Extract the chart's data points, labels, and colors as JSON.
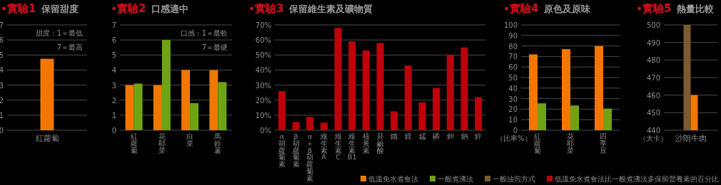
{
  "chart_data": [
    {
      "type": "bar",
      "title": "實驗1",
      "subtitle": "保留甜度",
      "categories": [
        "紅蘿蔔"
      ],
      "series": [
        {
          "name": "低溫免水煮食法",
          "color": "#f07800",
          "values": [
            4.75
          ]
        }
      ],
      "ylim": [
        0,
        7
      ],
      "yticks": [
        0,
        1,
        2,
        3,
        4,
        5,
        6,
        7
      ],
      "grid": "y",
      "legend": "bottom",
      "annotations": [
        "甜度：1＝最低",
        "7＝最高"
      ]
    },
    {
      "type": "bar",
      "title": "實驗2",
      "subtitle": "口感適中",
      "categories": [
        "紅蘿蔔",
        "花耶菜",
        "白菜",
        "馬鈴薯"
      ],
      "series": [
        {
          "color": "#f07800",
          "values": [
            3,
            3,
            4,
            4
          ]
        },
        {
          "name": "一般煮沸法",
          "color": "#6fa314",
          "values": [
            3.1,
            6,
            1.8,
            3.2
          ]
        }
      ],
      "ylim": [
        0,
        7
      ],
      "yticks": [
        0,
        1,
        2,
        3,
        4,
        5,
        6,
        7
      ],
      "grid": "y",
      "legend": "bottom",
      "annotations": [
        "口感：1＝最軟",
        "7＝最硬"
      ]
    },
    {
      "type": "bar",
      "title": "實驗3",
      "subtitle": "保留維生素及礦物質",
      "categories": [
        "α胡蘿蔔素",
        "β胡蘿蔔素",
        "α＋β胡蘿蔔素",
        "維生素A",
        "維生素C",
        "維生素B1",
        "核黃素",
        "菸鹼酸",
        "鐵",
        "鎂",
        "錳",
        "磷",
        "鉀",
        "鈉",
        "鋅"
      ],
      "series": [
        {
          "name": "低溫免水煮食法比一般煮沸法多保留營養素的百分比",
          "color": "#c0000a",
          "values": [
            26,
            5.5,
            8.8,
            5,
            68,
            59,
            53,
            58,
            12.5,
            43,
            18.5,
            28,
            50,
            55,
            22
          ]
        }
      ],
      "ylim": [
        0,
        70
      ],
      "yticks": [
        {
          "value": 0,
          "label": "0%"
        },
        {
          "value": 10,
          "label": "10%"
        },
        {
          "value": 20,
          "label": "20%"
        },
        {
          "value": 30,
          "label": "30%"
        },
        {
          "value": 40,
          "label": "40%"
        },
        {
          "value": 50,
          "label": "50%"
        },
        {
          "value": 60,
          "label": "60%"
        },
        {
          "value": 70,
          "label": "70%"
        }
      ],
      "grid": "y",
      "legend": "bottom"
    },
    {
      "type": "bar",
      "title": "實驗4",
      "subtitle": "原色及原味",
      "ylabel": "（比率%）",
      "categories": [
        "紅蘿蔔",
        "花耶菜",
        "四季豆"
      ],
      "series": [
        {
          "color": "#f07800",
          "values": [
            72,
            77,
            80
          ]
        },
        {
          "color": "#6fa314",
          "values": [
            25.5,
            23.5,
            20.5
          ]
        }
      ],
      "ylim": [
        0,
        100
      ],
      "yticks": [
        0,
        10,
        20,
        30,
        40,
        50,
        60,
        70,
        80,
        90,
        100
      ],
      "grid": "y"
    },
    {
      "type": "bar",
      "title": "實驗5",
      "subtitle": "熱量比較",
      "ylabel": "（大卡）",
      "categories": [
        "沙朗牛肉"
      ],
      "series": [
        {
          "name": "一般油煎方式",
          "color": "#7a5a2e",
          "values": [
            500
          ]
        },
        {
          "color": "#f07800",
          "values": [
            460
          ]
        }
      ],
      "ylim": [
        440,
        500
      ],
      "yticks": [
        440,
        450,
        460,
        470,
        480,
        490,
        500
      ],
      "grid": "y",
      "legend": "bottom"
    }
  ]
}
